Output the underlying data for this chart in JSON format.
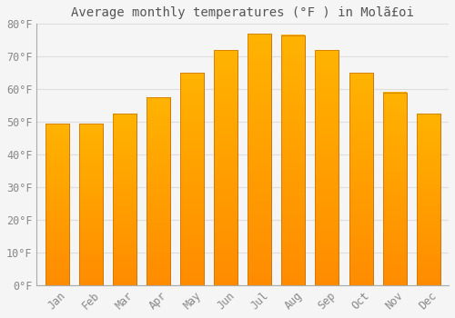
{
  "title": "Average monthly temperatures (°F ) in Molã£oi",
  "months": [
    "Jan",
    "Feb",
    "Mar",
    "Apr",
    "May",
    "Jun",
    "Jul",
    "Aug",
    "Sep",
    "Oct",
    "Nov",
    "Dec"
  ],
  "values": [
    49.5,
    49.5,
    52.5,
    57.5,
    65,
    72,
    77,
    76.5,
    72,
    65,
    59,
    52.5
  ],
  "bar_color_top": "#FFB300",
  "bar_color_bottom": "#FF8C00",
  "bar_edge_color": "#CC7000",
  "background_color": "#F5F5F5",
  "plot_bg_color": "#F5F5F5",
  "grid_color": "#DDDDDD",
  "text_color": "#888888",
  "title_color": "#555555",
  "ylim": [
    0,
    80
  ],
  "ytick_step": 10,
  "title_fontsize": 10,
  "tick_fontsize": 8.5,
  "bar_width": 0.7
}
